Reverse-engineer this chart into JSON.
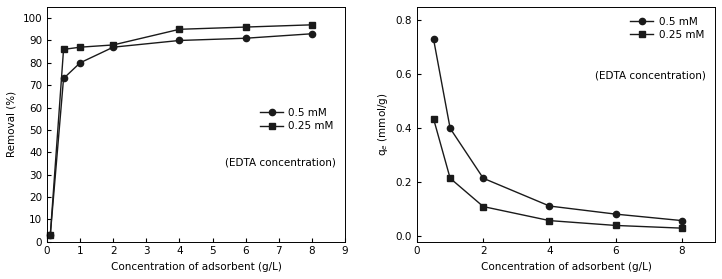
{
  "left": {
    "x_05": [
      0.1,
      0.5,
      1.0,
      2.0,
      4.0,
      6.0,
      8.0
    ],
    "y_05": [
      3,
      73,
      80,
      87,
      90,
      91,
      93
    ],
    "x_025": [
      0.1,
      0.5,
      1.0,
      2.0,
      4.0,
      6.0,
      8.0
    ],
    "y_025": [
      3,
      86,
      87,
      88,
      95,
      96,
      97
    ],
    "xlabel": "Concentration of adsorbent (g/L)",
    "ylabel": "Removal (%)",
    "xlim": [
      0,
      9
    ],
    "ylim": [
      0,
      105
    ],
    "yticks": [
      0,
      10,
      20,
      30,
      40,
      50,
      60,
      70,
      80,
      90,
      100
    ],
    "xticks": [
      0,
      1,
      2,
      3,
      4,
      5,
      6,
      7,
      8,
      9
    ]
  },
  "right": {
    "x_05": [
      0.5,
      1.0,
      2.0,
      4.0,
      6.0,
      8.0
    ],
    "y_05": [
      0.73,
      0.4,
      0.215,
      0.112,
      0.082,
      0.058
    ],
    "x_025": [
      0.5,
      1.0,
      2.0,
      4.0,
      6.0,
      8.0
    ],
    "y_025": [
      0.435,
      0.215,
      0.11,
      0.058,
      0.04,
      0.03
    ],
    "xlabel": "Concentration of adsorbent (g/L)",
    "ylabel": "q$_e$ (mmol/g)",
    "xlim": [
      0,
      9
    ],
    "ylim": [
      -0.02,
      0.85
    ],
    "yticks": [
      0.0,
      0.2,
      0.4,
      0.6,
      0.8
    ],
    "xticks": [
      0,
      2,
      4,
      6,
      8
    ]
  },
  "legend_05": "0.5 mM",
  "legend_025": "0.25 mM",
  "legend_sub": "(EDTA concentration)",
  "line_color": "#1a1a1a",
  "marker_circle": "o",
  "marker_square": "s",
  "markersize": 4.5,
  "linewidth": 1.0,
  "fontsize_label": 7.5,
  "fontsize_tick": 7.5,
  "fontsize_legend": 7.5
}
